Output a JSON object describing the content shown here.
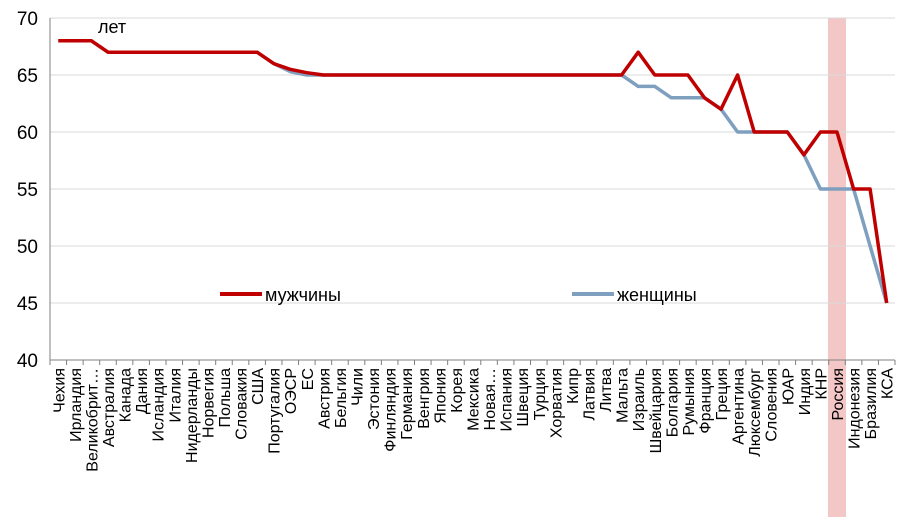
{
  "chart_data": {
    "type": "line",
    "unit_label": "лет",
    "ylim": [
      40,
      70
    ],
    "yticks": [
      40,
      45,
      50,
      55,
      60,
      65,
      70
    ],
    "grid": true,
    "legend_placement": "inside-bottom",
    "highlight_category": "Россия",
    "highlight_color": "#f4c7c7",
    "categories": [
      "Чехия",
      "Ирландия",
      "Великобрит…",
      "Австралия",
      "Канада",
      "Дания",
      "Исландия",
      "Италия",
      "Нидерланды",
      "Норвегия",
      "Польша",
      "Словакия",
      "США",
      "Португалия",
      "ОЭСР",
      "ЕС",
      "Австрия",
      "Бельгия",
      "Чили",
      "Эстония",
      "Финляндия",
      "Германия",
      "Венгрия",
      "Япония",
      "Корея",
      "Мексика",
      "Новая…",
      "Испания",
      "Швеция",
      "Турция",
      "Хорватия",
      "Кипр",
      "Латвия",
      "Литва",
      "Мальта",
      "Израиль",
      "Швейцария",
      "Болгария",
      "Румыния",
      "Франция",
      "Греция",
      "Аргентина",
      "Люксембург",
      "Словения",
      "ЮАР",
      "Индия",
      "КНР",
      "Россия",
      "Индонезия",
      "Бразилия",
      "КСА"
    ],
    "series": [
      {
        "name": "мужчины",
        "color": "#c00000",
        "values": [
          68,
          68,
          68,
          67,
          67,
          67,
          67,
          67,
          67,
          67,
          67,
          67,
          67,
          66,
          65.5,
          65.2,
          65,
          65,
          65,
          65,
          65,
          65,
          65,
          65,
          65,
          65,
          65,
          65,
          65,
          65,
          65,
          65,
          65,
          65,
          65,
          67,
          65,
          65,
          65,
          63,
          62,
          65,
          60,
          60,
          60,
          58,
          60,
          60,
          55,
          55,
          45
        ]
      },
      {
        "name": "женщины",
        "color": "#7f9fbf",
        "values": [
          68,
          68,
          68,
          67,
          67,
          67,
          67,
          67,
          67,
          67,
          67,
          67,
          67,
          66,
          65.3,
          65,
          65,
          65,
          65,
          65,
          65,
          65,
          65,
          65,
          65,
          65,
          65,
          65,
          65,
          65,
          65,
          65,
          65,
          65,
          65,
          64,
          64,
          63,
          63,
          63,
          62,
          60,
          60,
          60,
          60,
          58,
          55,
          55,
          55,
          50,
          45
        ]
      }
    ]
  }
}
